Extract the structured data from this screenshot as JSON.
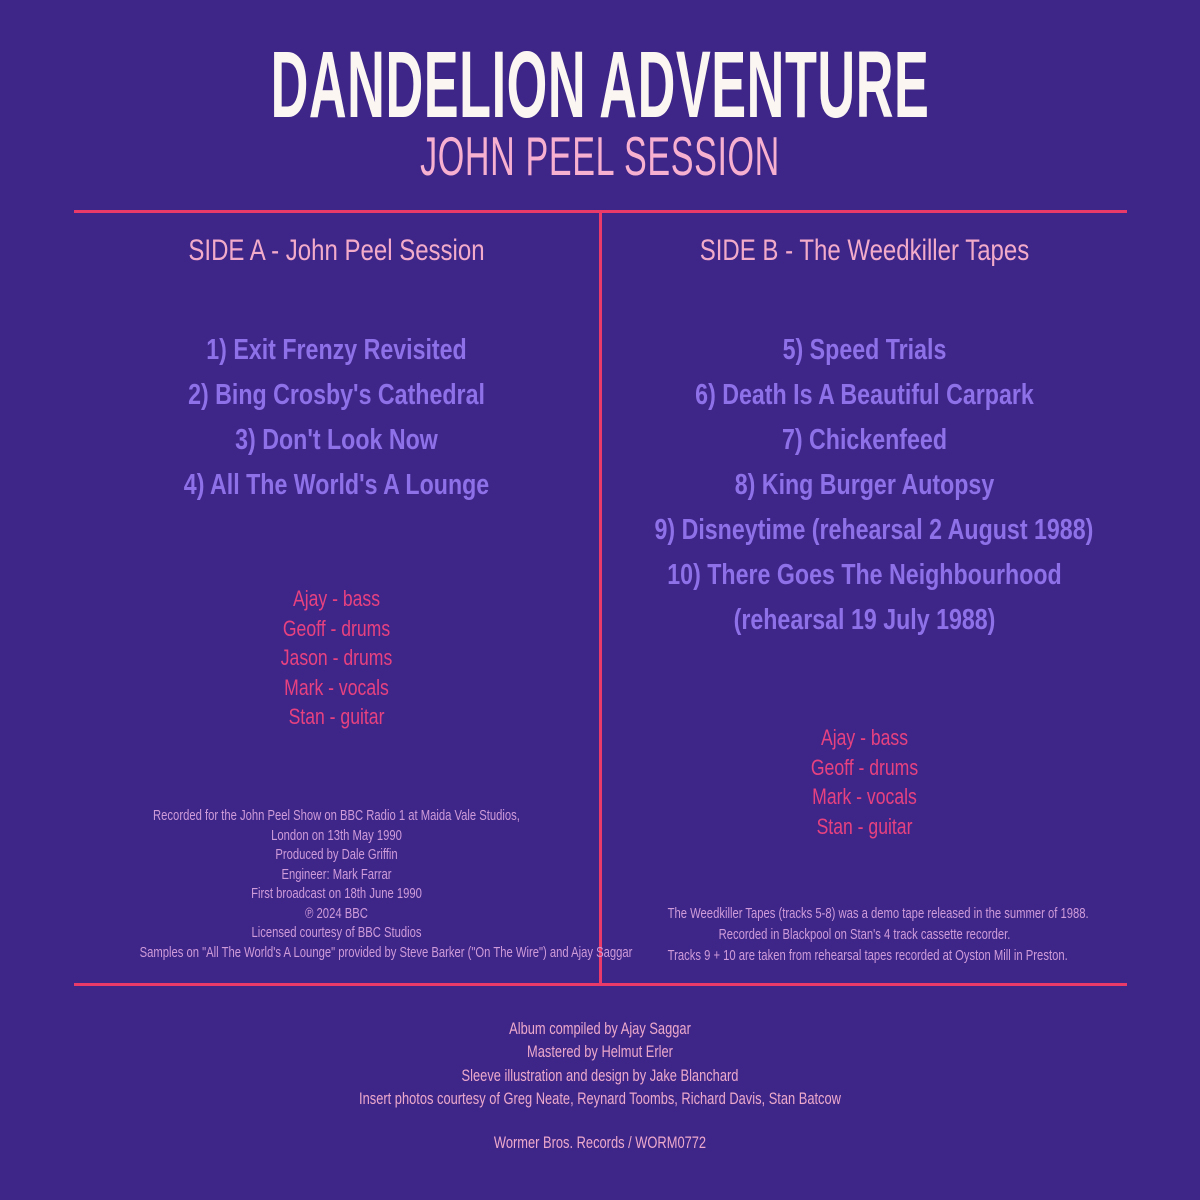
{
  "album": {
    "title": "DANDELION ADVENTURE",
    "subtitle": "JOHN PEEL SESSION"
  },
  "colors": {
    "background": "#3e2689",
    "title_text": "#fbf6f1",
    "pink_heading": "#f3abca",
    "track_text": "#8e70e8",
    "lineup_text": "#e7417f",
    "fine_print_text": "#cf9bd9",
    "rule": "#ea3a6a"
  },
  "side_a": {
    "heading": "SIDE A - John Peel Session",
    "tracks": [
      "1) Exit Frenzy Revisited",
      "2) Bing Crosby's Cathedral",
      "3) Don't Look Now",
      "4) All The World's A Lounge"
    ],
    "lineup": [
      "Ajay - bass",
      "Geoff - drums",
      "Jason - drums",
      "Mark - vocals",
      "Stan - guitar"
    ],
    "notes": [
      "Recorded for the John Peel Show on BBC Radio 1 at Maida Vale Studios,",
      "London on 13th May 1990",
      "Produced by Dale Griffin",
      "Engineer: Mark Farrar",
      "First broadcast on 18th June 1990",
      "℗ 2024 BBC",
      "Licensed courtesy of BBC Studios",
      "Samples on \"All The World's A Lounge\" provided by Steve Barker (\"On The Wire\") and Ajay Saggar"
    ]
  },
  "side_b": {
    "heading": "SIDE B - The Weedkiller Tapes",
    "tracks": [
      "5) Speed Trials",
      "6) Death Is A Beautiful Carpark",
      "7) Chickenfeed",
      "8) King Burger Autopsy",
      "9) Disneytime (rehearsal 2 August 1988)",
      "10) There Goes The Neighbourhood",
      "(rehearsal 19 July 1988)"
    ],
    "lineup": [
      "Ajay - bass",
      "Geoff - drums",
      "Mark - vocals",
      "Stan - guitar"
    ],
    "notes": [
      "The Weedkiller Tapes (tracks 5-8) was a demo tape released in the summer of 1988.",
      "Recorded in Blackpool on Stan's 4 track cassette recorder.",
      "Tracks 9 + 10 are taken from rehearsal tapes recorded at Oyston Mill in Preston."
    ]
  },
  "footer": {
    "credits": [
      "Album compiled by Ajay Saggar",
      "Mastered by Helmut Erler",
      "Sleeve illustration and design by Jake Blanchard",
      "Insert photos courtesy of Greg Neate, Reynard Toombs, Richard Davis, Stan Batcow"
    ],
    "label_line": "Wormer Bros. Records / WORM0772"
  }
}
